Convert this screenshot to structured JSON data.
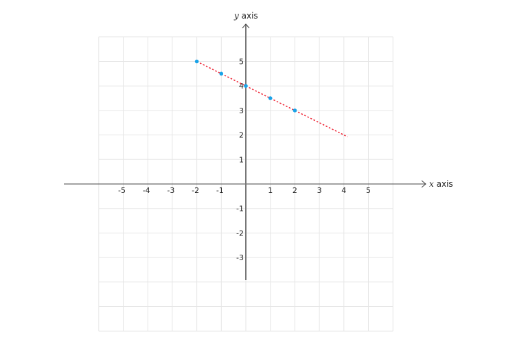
{
  "chart_data": {
    "type": "scatter",
    "title": "",
    "xlabel_var": "x",
    "xlabel_text": "axis",
    "ylabel_var": "y",
    "ylabel_text": "axis",
    "xlim": [
      -6,
      6
    ],
    "ylim": [
      -6,
      6
    ],
    "grid": true,
    "x_ticks": [
      -5,
      -4,
      -3,
      -2,
      -1,
      1,
      2,
      3,
      4,
      5
    ],
    "y_ticks": [
      5,
      4,
      3,
      2,
      1,
      -1,
      -2,
      -3
    ],
    "points": [
      {
        "x": -2,
        "y": 5
      },
      {
        "x": -1,
        "y": 4.5
      },
      {
        "x": 0,
        "y": 4
      },
      {
        "x": 1,
        "y": 3.5
      },
      {
        "x": 2,
        "y": 3
      }
    ],
    "line": {
      "x_start": -2,
      "x_end": 4.15,
      "slope": -0.5,
      "intercept": 4,
      "style": "dotted"
    },
    "colors": {
      "points": "#1aa3e8",
      "line": "#ee2233",
      "axes": "#777777",
      "grid": "#e6e6e6"
    }
  }
}
